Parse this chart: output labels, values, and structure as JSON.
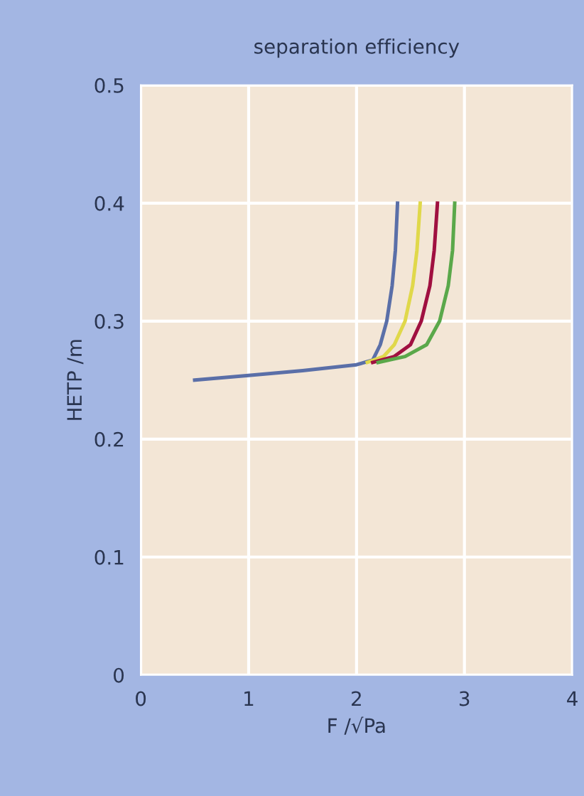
{
  "chart_data": {
    "type": "line",
    "title": "separation efficiency",
    "xlabel": "F /√Pa",
    "ylabel": "HETP /m",
    "xlim": [
      0,
      4
    ],
    "xticks": [
      0,
      1,
      2,
      3,
      4
    ],
    "ylim": [
      0,
      0.5
    ],
    "yticks": [
      0,
      0.1,
      0.2,
      0.3,
      0.4,
      0.5
    ],
    "grid": true,
    "marker": "none",
    "line_style": "solid",
    "series": [
      {
        "color": "#5a6fa8",
        "x": [
          0.5,
          1.0,
          1.5,
          2.0,
          2.15,
          2.22,
          2.28,
          2.33,
          2.36,
          2.38
        ],
        "values": [
          0.25,
          0.254,
          0.258,
          0.263,
          0.267,
          0.28,
          0.3,
          0.33,
          0.36,
          0.4
        ]
      },
      {
        "color": "#e0d84a",
        "x": [
          2.1,
          2.25,
          2.35,
          2.45,
          2.52,
          2.56,
          2.59
        ],
        "values": [
          0.265,
          0.27,
          0.28,
          0.3,
          0.33,
          0.36,
          0.4
        ]
      },
      {
        "color": "#a01040",
        "x": [
          2.15,
          2.35,
          2.5,
          2.6,
          2.68,
          2.72,
          2.75
        ],
        "values": [
          0.265,
          0.27,
          0.28,
          0.3,
          0.33,
          0.36,
          0.4
        ]
      },
      {
        "color": "#5aa84a",
        "x": [
          2.2,
          2.45,
          2.65,
          2.77,
          2.85,
          2.89,
          2.91
        ],
        "values": [
          0.265,
          0.27,
          0.28,
          0.3,
          0.33,
          0.36,
          0.4
        ]
      }
    ]
  }
}
